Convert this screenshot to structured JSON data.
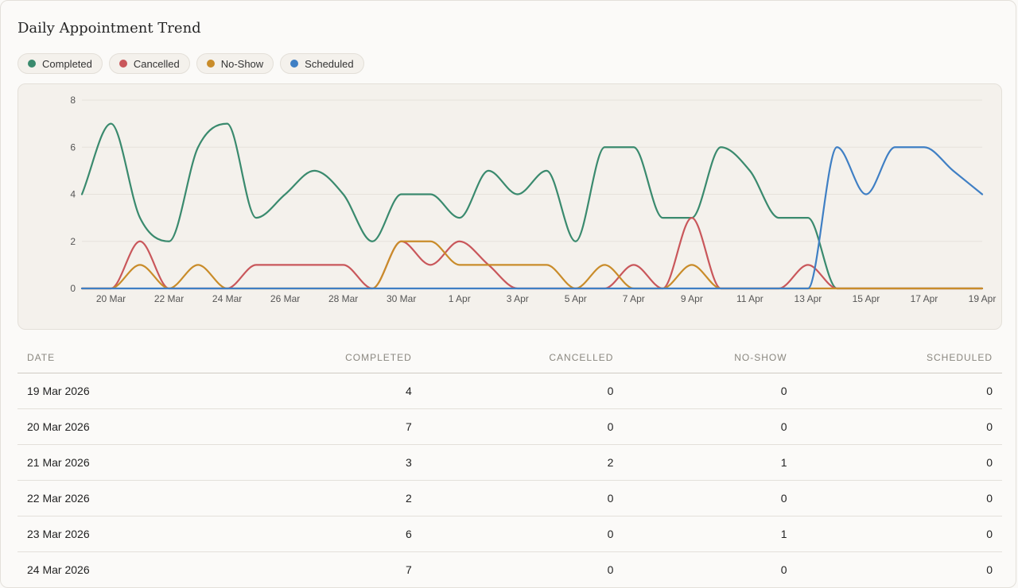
{
  "title": "Daily Appointment Trend",
  "legend": [
    {
      "label": "Completed",
      "color": "#3a8a6e"
    },
    {
      "label": "Cancelled",
      "color": "#c9575b"
    },
    {
      "label": "No-Show",
      "color": "#c98c2a"
    },
    {
      "label": "Scheduled",
      "color": "#3f7fc4"
    }
  ],
  "chart_data": {
    "type": "line",
    "x": [
      "19 Mar",
      "20 Mar",
      "21 Mar",
      "22 Mar",
      "23 Mar",
      "24 Mar",
      "25 Mar",
      "26 Mar",
      "27 Mar",
      "28 Mar",
      "29 Mar",
      "30 Mar",
      "31 Mar",
      "1 Apr",
      "2 Apr",
      "3 Apr",
      "4 Apr",
      "5 Apr",
      "6 Apr",
      "7 Apr",
      "8 Apr",
      "9 Apr",
      "10 Apr",
      "11 Apr",
      "12 Apr",
      "13 Apr",
      "14 Apr",
      "15 Apr",
      "16 Apr",
      "17 Apr",
      "18 Apr",
      "19 Apr"
    ],
    "x_tick_labels": [
      "20 Mar",
      "22 Mar",
      "24 Mar",
      "26 Mar",
      "28 Mar",
      "30 Mar",
      "1 Apr",
      "3 Apr",
      "5 Apr",
      "7 Apr",
      "9 Apr",
      "11 Apr",
      "13 Apr",
      "15 Apr",
      "17 Apr",
      "19 Apr"
    ],
    "x_tick_indices": [
      1,
      3,
      5,
      7,
      9,
      11,
      13,
      15,
      17,
      19,
      21,
      23,
      25,
      27,
      29,
      31
    ],
    "y_ticks": [
      0,
      2,
      4,
      6,
      8
    ],
    "ylim": [
      0,
      8
    ],
    "grid": true,
    "series": [
      {
        "name": "Completed",
        "color": "#3a8a6e",
        "values": [
          4,
          7,
          3,
          2,
          6,
          7,
          3,
          4,
          5,
          4,
          2,
          4,
          4,
          3,
          5,
          4,
          5,
          2,
          6,
          6,
          3,
          3,
          6,
          5,
          3,
          3,
          0,
          0,
          0,
          0,
          0,
          0
        ]
      },
      {
        "name": "Cancelled",
        "color": "#c9575b",
        "values": [
          0,
          0,
          2,
          0,
          0,
          0,
          1,
          1,
          1,
          1,
          0,
          2,
          1,
          2,
          1,
          0,
          0,
          0,
          0,
          1,
          0,
          3,
          0,
          0,
          0,
          1,
          0,
          0,
          0,
          0,
          0,
          0
        ]
      },
      {
        "name": "No-Show",
        "color": "#c98c2a",
        "values": [
          0,
          0,
          1,
          0,
          1,
          0,
          0,
          0,
          0,
          0,
          0,
          2,
          2,
          1,
          1,
          1,
          1,
          0,
          1,
          0,
          0,
          1,
          0,
          0,
          0,
          0,
          0,
          0,
          0,
          0,
          0,
          0
        ]
      },
      {
        "name": "Scheduled",
        "color": "#3f7fc4",
        "values": [
          0,
          0,
          0,
          0,
          0,
          0,
          0,
          0,
          0,
          0,
          0,
          0,
          0,
          0,
          0,
          0,
          0,
          0,
          0,
          0,
          0,
          0,
          0,
          0,
          0,
          0,
          6,
          4,
          6,
          6,
          5,
          4
        ]
      }
    ]
  },
  "table": {
    "headers": [
      "DATE",
      "COMPLETED",
      "CANCELLED",
      "NO-SHOW",
      "SCHEDULED"
    ],
    "rows": [
      [
        "19 Mar 2026",
        "4",
        "0",
        "0",
        "0"
      ],
      [
        "20 Mar 2026",
        "7",
        "0",
        "0",
        "0"
      ],
      [
        "21 Mar 2026",
        "3",
        "2",
        "1",
        "0"
      ],
      [
        "22 Mar 2026",
        "2",
        "0",
        "0",
        "0"
      ],
      [
        "23 Mar 2026",
        "6",
        "0",
        "1",
        "0"
      ],
      [
        "24 Mar 2026",
        "7",
        "0",
        "0",
        "0"
      ]
    ]
  }
}
